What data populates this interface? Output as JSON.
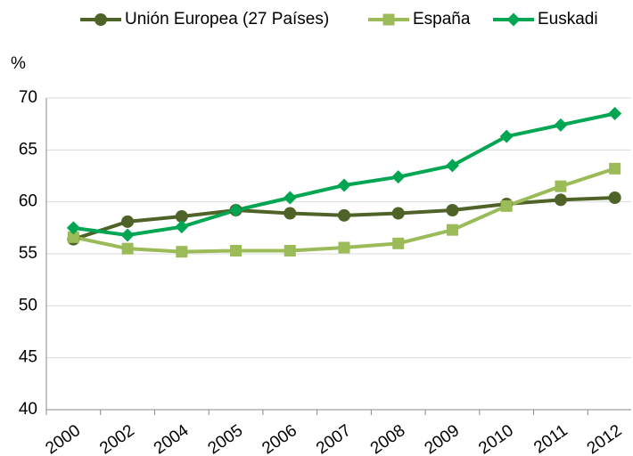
{
  "chart_data": {
    "type": "line",
    "y_label": "%",
    "categories": [
      "2000",
      "2002",
      "2004",
      "2005",
      "2006",
      "2007",
      "2008",
      "2009",
      "2010",
      "2011",
      "2012"
    ],
    "series": [
      {
        "name": "Unión Europea (27 Países)",
        "color": "#4f6228",
        "marker": "circle",
        "values": [
          56.4,
          58.1,
          58.6,
          59.2,
          58.9,
          58.7,
          58.9,
          59.2,
          59.8,
          60.2,
          60.4
        ]
      },
      {
        "name": "España",
        "color": "#9bbb59",
        "marker": "square",
        "values": [
          56.6,
          55.5,
          55.2,
          55.3,
          55.3,
          55.6,
          56.0,
          57.3,
          59.6,
          61.5,
          63.2
        ]
      },
      {
        "name": "Euskadi",
        "color": "#00a651",
        "marker": "diamond",
        "values": [
          57.5,
          56.8,
          57.6,
          59.2,
          60.4,
          61.6,
          62.4,
          63.5,
          66.3,
          67.4,
          68.5
        ]
      }
    ],
    "ylim": [
      40,
      70
    ],
    "yticks": [
      40,
      45,
      50,
      55,
      60,
      65,
      70
    ],
    "grid": true,
    "legend": "top"
  }
}
